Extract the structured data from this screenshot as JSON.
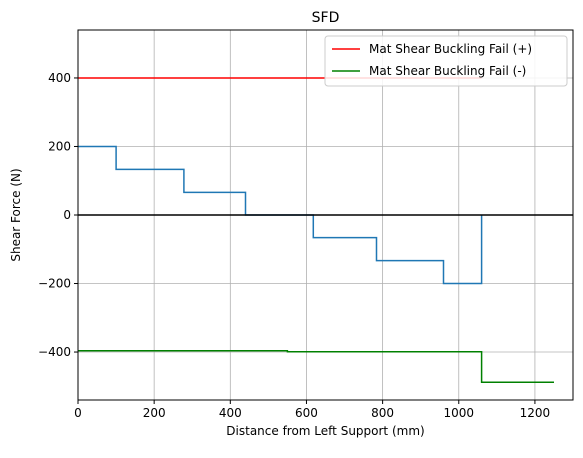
{
  "chart_data": {
    "type": "line",
    "title": "SFD",
    "xlabel": "Distance from Left Support (mm)",
    "ylabel": "Shear Force (N)",
    "xlim": [
      0,
      1300
    ],
    "ylim": [
      -540,
      540
    ],
    "xticks": [
      0,
      200,
      400,
      600,
      800,
      1000,
      1200
    ],
    "yticks": [
      -400,
      -200,
      0,
      200,
      400
    ],
    "xtick_labels": [
      "0",
      "200",
      "400",
      "600",
      "800",
      "1000",
      "1200"
    ],
    "ytick_labels": [
      "−400",
      "−200",
      "0",
      "200",
      "400"
    ],
    "grid": true,
    "legend_position": "upper-right",
    "series": [
      {
        "color": "#1f77b4",
        "x": [
          0,
          100,
          100,
          278,
          278,
          440,
          440,
          618,
          618,
          784,
          784,
          960,
          960,
          1060,
          1060
        ],
        "y": [
          200,
          200,
          133,
          133,
          66,
          66,
          0,
          0,
          -66,
          -66,
          -133,
          -133,
          -200,
          -200,
          0
        ]
      },
      {
        "color": "#000000",
        "x": [
          0,
          1300
        ],
        "y": [
          0,
          0
        ]
      },
      {
        "name": "Mat Shear Buckling Fail (+)",
        "color": "#ff0000",
        "x": [
          0,
          1060
        ],
        "y": [
          400,
          400
        ]
      },
      {
        "name": "Mat Shear Buckling Fail (-)",
        "color": "#008000",
        "x": [
          0,
          550,
          550,
          1060,
          1060,
          1250
        ],
        "y": [
          -396,
          -396,
          -399,
          -399,
          -488,
          -488
        ]
      }
    ]
  }
}
